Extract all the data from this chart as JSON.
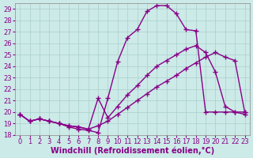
{
  "xlabel": "Windchill (Refroidissement éolien,°C)",
  "background_color": "#cceae7",
  "grid_color": "#aacfcc",
  "line_color": "#880088",
  "xlim": [
    -0.5,
    23.5
  ],
  "ylim": [
    18,
    29.5
  ],
  "xticks": [
    0,
    1,
    2,
    3,
    4,
    5,
    6,
    7,
    8,
    9,
    10,
    11,
    12,
    13,
    14,
    15,
    16,
    17,
    18,
    19,
    20,
    21,
    22,
    23
  ],
  "yticks": [
    18,
    19,
    20,
    21,
    22,
    23,
    24,
    25,
    26,
    27,
    28,
    29
  ],
  "line1_x": [
    0,
    1,
    2,
    3,
    4,
    5,
    6,
    7,
    8,
    9,
    10,
    11,
    12,
    13,
    14,
    15,
    16,
    17,
    18,
    19,
    20,
    21,
    22,
    23
  ],
  "line1_y": [
    19.8,
    19.2,
    19.4,
    19.2,
    19.0,
    18.7,
    18.5,
    18.4,
    18.2,
    21.2,
    24.4,
    26.5,
    27.2,
    28.8,
    29.3,
    29.3,
    28.6,
    27.2,
    27.1,
    20.0,
    20.0,
    20.0,
    20.0,
    20.0
  ],
  "line2_x": [
    0,
    1,
    2,
    3,
    4,
    5,
    6,
    7,
    8,
    9,
    10,
    11,
    12,
    13,
    14,
    15,
    16,
    17,
    18,
    19,
    20,
    21,
    22,
    23
  ],
  "line2_y": [
    19.8,
    19.2,
    19.4,
    19.2,
    19.0,
    18.8,
    18.7,
    18.5,
    21.2,
    19.5,
    20.5,
    21.5,
    22.3,
    23.2,
    24.0,
    24.5,
    25.0,
    25.5,
    25.8,
    25.2,
    23.5,
    20.5,
    20.0,
    19.8
  ],
  "line3_x": [
    0,
    1,
    2,
    3,
    4,
    5,
    6,
    7,
    8,
    9,
    10,
    11,
    12,
    13,
    14,
    15,
    16,
    17,
    18,
    19,
    20,
    21,
    22,
    23
  ],
  "line3_y": [
    19.8,
    19.2,
    19.4,
    19.2,
    19.0,
    18.8,
    18.7,
    18.5,
    18.8,
    19.2,
    19.8,
    20.4,
    21.0,
    21.6,
    22.2,
    22.7,
    23.2,
    23.8,
    24.3,
    24.8,
    25.2,
    24.8,
    24.5,
    20.0
  ],
  "marker": "+",
  "markersize": 4,
  "linewidth": 1.0,
  "tick_fontsize": 6,
  "xlabel_fontsize": 7
}
